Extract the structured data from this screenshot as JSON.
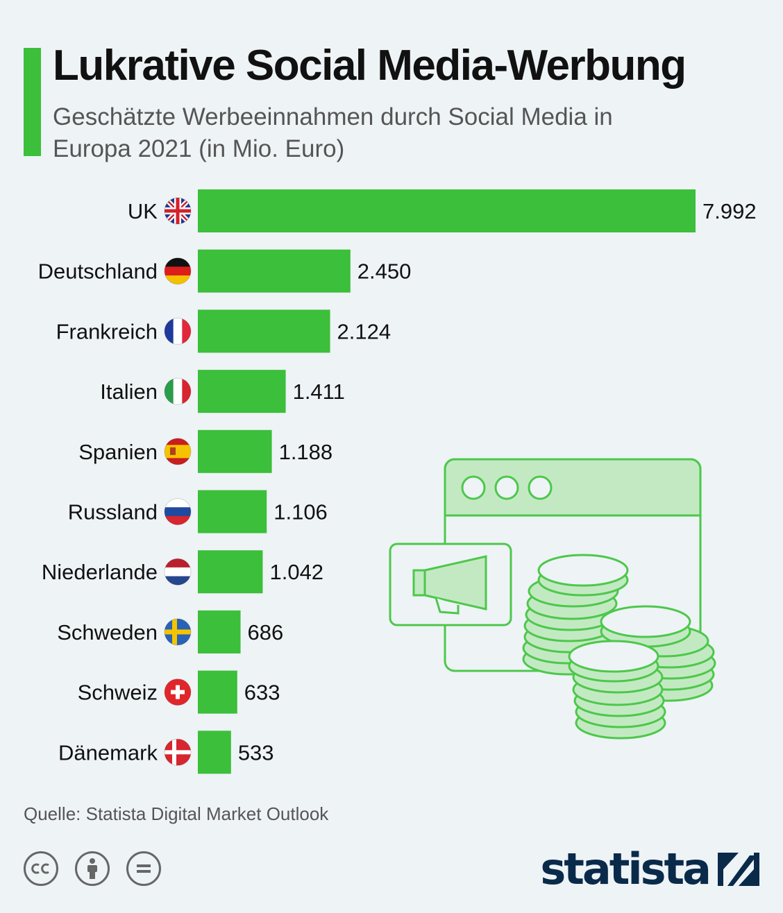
{
  "header": {
    "title": "Lukrative Social Media-Werbung",
    "subtitle": "Geschätzte Werbeeinnahmen durch Social Media in Europa 2021 (in Mio. Euro)"
  },
  "colors": {
    "accent": "#3cbf3a",
    "bar": "#3cbf3a",
    "illustration_line": "#4cc84a",
    "illustration_fill": "#c3e9c3",
    "brand": "#0a2a4a"
  },
  "chart_data": {
    "type": "bar",
    "orientation": "horizontal",
    "categories": [
      "UK",
      "Deutschland",
      "Frankreich",
      "Italien",
      "Spanien",
      "Russland",
      "Niederlande",
      "Schweden",
      "Schweiz",
      "Dänemark"
    ],
    "values": [
      7992,
      2450,
      2124,
      1411,
      1188,
      1106,
      1042,
      686,
      633,
      533
    ],
    "value_labels": [
      "7.992",
      "2.450",
      "2.124",
      "1.411",
      "1.188",
      "1.106",
      "1.042",
      "686",
      "633",
      "533"
    ],
    "flag_icons": [
      "uk-flag-icon",
      "germany-flag-icon",
      "france-flag-icon",
      "italy-flag-icon",
      "spain-flag-icon",
      "russia-flag-icon",
      "netherlands-flag-icon",
      "sweden-flag-icon",
      "switzerland-flag-icon",
      "denmark-flag-icon"
    ],
    "title": "Lukrative Social Media-Werbung",
    "xlabel": "",
    "ylabel": "",
    "xlim": [
      0,
      7992
    ],
    "grid": false,
    "legend": "none"
  },
  "footer": {
    "source": "Quelle: Statista Digital Market Outlook",
    "license_icons": [
      "cc-icon",
      "attribution-icon",
      "no-derivatives-icon"
    ],
    "brand": "statista"
  }
}
